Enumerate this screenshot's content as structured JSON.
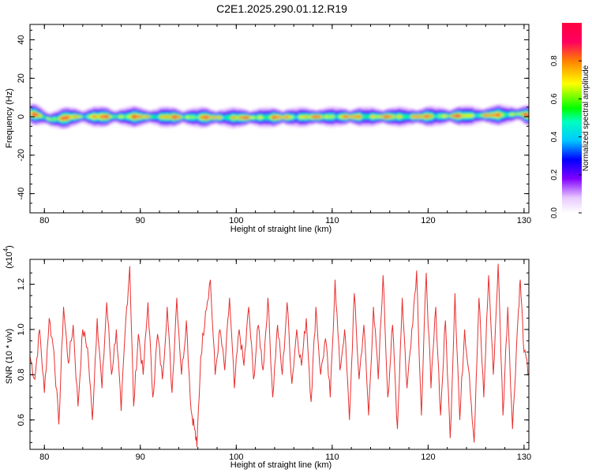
{
  "title": "C2E1.2025.290.01.12.R19",
  "chart_data": [
    {
      "type": "heatmap",
      "xlabel": "Height of straight line (km)",
      "ylabel": "Frequency (Hz)",
      "xlim": [
        78.5,
        130.5
      ],
      "ylim": [
        -50,
        48
      ],
      "xticks": [
        80,
        90,
        100,
        110,
        120,
        130
      ],
      "yticks": [
        -40,
        -20,
        0,
        20,
        40
      ],
      "colorbar": {
        "label": "Normalized spectral amplitude",
        "range": [
          0.0,
          1.0
        ],
        "ticks": [
          "0.0",
          "0.2",
          "0.4",
          "0.6",
          "0.8"
        ],
        "colormap": "rainbow (white-violet-blue-cyan-green-yellow-red)"
      },
      "ridge_frequency": [
        {
          "x": 78.5,
          "y": 1.5
        },
        {
          "x": 79.5,
          "y": 0.5
        },
        {
          "x": 80.5,
          "y": -1.5
        },
        {
          "x": 81.5,
          "y": -1.0
        },
        {
          "x": 83,
          "y": 0.0
        },
        {
          "x": 90,
          "y": 0.0
        },
        {
          "x": 100,
          "y": -0.5
        },
        {
          "x": 110,
          "y": 0.0
        },
        {
          "x": 118,
          "y": 0.0
        },
        {
          "x": 124,
          "y": 0.5
        },
        {
          "x": 128,
          "y": 1.0
        },
        {
          "x": 129.5,
          "y": 1.5
        },
        {
          "x": 130.5,
          "y": 0.5
        }
      ]
    },
    {
      "type": "line",
      "xlabel": "Height of straight line (km)",
      "ylabel": "SNR (10 * v/v)",
      "yscale_label": "(x10",
      "yscale_exponent": "4",
      "xlim": [
        78.5,
        130.5
      ],
      "ylim": [
        0.47,
        1.31
      ],
      "xticks": [
        80,
        90,
        100,
        110,
        120,
        130
      ],
      "yticks": [
        "0.6",
        "0.8",
        "1.0",
        "1.2"
      ],
      "series_color": "#e83030",
      "points": [
        [
          78.5,
          0.88
        ],
        [
          79.0,
          0.78
        ],
        [
          79.5,
          1.0
        ],
        [
          80.0,
          0.72
        ],
        [
          80.5,
          1.05
        ],
        [
          81.0,
          0.9
        ],
        [
          81.5,
          0.58
        ],
        [
          82.0,
          1.1
        ],
        [
          82.5,
          0.85
        ],
        [
          83.0,
          1.02
        ],
        [
          83.5,
          0.66
        ],
        [
          84.0,
          1.0
        ],
        [
          84.5,
          0.92
        ],
        [
          85.0,
          0.6
        ],
        [
          85.5,
          1.05
        ],
        [
          86.0,
          0.74
        ],
        [
          86.5,
          1.12
        ],
        [
          87.0,
          0.8
        ],
        [
          87.5,
          1.0
        ],
        [
          88.0,
          0.64
        ],
        [
          88.5,
          1.05
        ],
        [
          88.9,
          1.28
        ],
        [
          89.3,
          0.66
        ],
        [
          89.8,
          0.98
        ],
        [
          90.3,
          0.8
        ],
        [
          90.8,
          1.12
        ],
        [
          91.3,
          0.7
        ],
        [
          91.8,
          0.98
        ],
        [
          92.3,
          0.78
        ],
        [
          92.8,
          1.1
        ],
        [
          93.3,
          0.72
        ],
        [
          93.8,
          1.14
        ],
        [
          94.3,
          0.8
        ],
        [
          94.8,
          1.04
        ],
        [
          95.3,
          0.64
        ],
        [
          95.6,
          0.58
        ],
        [
          95.9,
          0.48
        ],
        [
          96.3,
          0.88
        ],
        [
          96.8,
          1.08
        ],
        [
          97.3,
          1.22
        ],
        [
          97.8,
          0.8
        ],
        [
          98.3,
          1.0
        ],
        [
          98.8,
          0.82
        ],
        [
          99.3,
          1.14
        ],
        [
          99.8,
          0.74
        ],
        [
          100.3,
          1.0
        ],
        [
          100.8,
          0.84
        ],
        [
          101.3,
          1.1
        ],
        [
          101.8,
          0.78
        ],
        [
          102.3,
          1.02
        ],
        [
          102.8,
          0.82
        ],
        [
          103.3,
          1.14
        ],
        [
          103.8,
          0.7
        ],
        [
          104.3,
          1.02
        ],
        [
          104.8,
          0.8
        ],
        [
          105.3,
          1.12
        ],
        [
          105.8,
          0.76
        ],
        [
          106.3,
          1.0
        ],
        [
          106.8,
          0.84
        ],
        [
          107.3,
          1.05
        ],
        [
          107.8,
          0.68
        ],
        [
          108.3,
          1.1
        ],
        [
          108.8,
          0.8
        ],
        [
          109.3,
          0.96
        ],
        [
          109.8,
          0.7
        ],
        [
          110.3,
          1.22
        ],
        [
          110.8,
          0.82
        ],
        [
          111.3,
          1.0
        ],
        [
          111.8,
          0.6
        ],
        [
          112.3,
          1.16
        ],
        [
          112.8,
          0.78
        ],
        [
          113.3,
          1.02
        ],
        [
          113.8,
          0.62
        ],
        [
          114.3,
          1.1
        ],
        [
          114.8,
          0.78
        ],
        [
          115.3,
          1.24
        ],
        [
          115.8,
          0.7
        ],
        [
          116.3,
          1.02
        ],
        [
          116.8,
          0.56
        ],
        [
          117.3,
          1.14
        ],
        [
          117.8,
          0.74
        ],
        [
          118.3,
          1.0
        ],
        [
          118.8,
          1.26
        ],
        [
          119.3,
          0.62
        ],
        [
          119.8,
          1.25
        ],
        [
          120.3,
          0.74
        ],
        [
          120.8,
          1.1
        ],
        [
          121.3,
          0.62
        ],
        [
          121.8,
          1.04
        ],
        [
          122.3,
          0.52
        ],
        [
          122.8,
          1.16
        ],
        [
          123.3,
          0.6
        ],
        [
          123.8,
          1.0
        ],
        [
          124.3,
          0.8
        ],
        [
          124.8,
          0.5
        ],
        [
          125.3,
          1.14
        ],
        [
          125.8,
          0.7
        ],
        [
          126.3,
          1.24
        ],
        [
          126.8,
          0.8
        ],
        [
          127.3,
          1.29
        ],
        [
          127.8,
          0.62
        ],
        [
          128.3,
          1.1
        ],
        [
          128.8,
          0.56
        ],
        [
          129.3,
          1.0
        ],
        [
          129.6,
          1.22
        ],
        [
          130.0,
          0.9
        ],
        [
          130.5,
          0.8
        ]
      ]
    }
  ]
}
